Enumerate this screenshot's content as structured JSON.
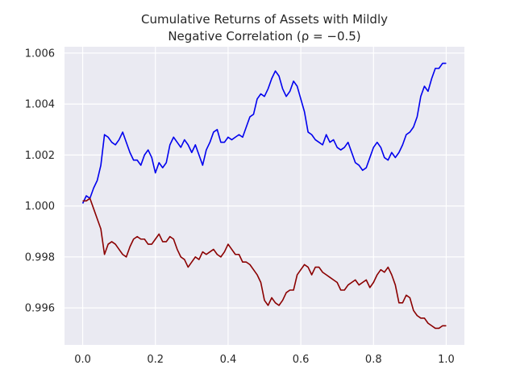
{
  "chart_data": {
    "type": "line",
    "title_line1": "Cumulative Returns of Assets with Mildly",
    "title_line2": "Negative Correlation (ρ = −0.5)",
    "xlabel": "",
    "ylabel": "",
    "xlim": [
      -0.05,
      1.05
    ],
    "ylim": [
      0.99455,
      1.00625
    ],
    "grid": true,
    "x_ticks": [
      0.0,
      0.2,
      0.4,
      0.6,
      0.8,
      1.0
    ],
    "x_tick_labels": [
      "0.0",
      "0.2",
      "0.4",
      "0.6",
      "0.8",
      "1.0"
    ],
    "y_ticks": [
      0.996,
      0.998,
      1.0,
      1.002,
      1.004,
      1.006
    ],
    "y_tick_labels": [
      "0.996",
      "0.998",
      "1.000",
      "1.002",
      "1.004",
      "1.006"
    ],
    "colors": {
      "background": "#eaeaf2",
      "grid": "#ffffff",
      "asset_1": "#0000ee",
      "asset_2": "#8b0000"
    },
    "series": [
      {
        "color": "#0000ee",
        "x": [
          0.0,
          0.01,
          0.02,
          0.03,
          0.04,
          0.05,
          0.06,
          0.07,
          0.08,
          0.09,
          0.1,
          0.11,
          0.12,
          0.13,
          0.14,
          0.15,
          0.16,
          0.17,
          0.18,
          0.19,
          0.2,
          0.21,
          0.22,
          0.23,
          0.24,
          0.25,
          0.26,
          0.27,
          0.28,
          0.29,
          0.3,
          0.31,
          0.32,
          0.33,
          0.34,
          0.35,
          0.36,
          0.37,
          0.38,
          0.39,
          0.4,
          0.41,
          0.42,
          0.43,
          0.44,
          0.45,
          0.46,
          0.47,
          0.48,
          0.49,
          0.5,
          0.51,
          0.52,
          0.53,
          0.54,
          0.55,
          0.56,
          0.57,
          0.58,
          0.59,
          0.6,
          0.61,
          0.62,
          0.63,
          0.64,
          0.65,
          0.66,
          0.67,
          0.68,
          0.69,
          0.7,
          0.71,
          0.72,
          0.73,
          0.74,
          0.75,
          0.76,
          0.77,
          0.78,
          0.79,
          0.8,
          0.81,
          0.82,
          0.83,
          0.84,
          0.85,
          0.86,
          0.87,
          0.88,
          0.89,
          0.9,
          0.91,
          0.92,
          0.93,
          0.94,
          0.95,
          0.96,
          0.97,
          0.98,
          0.99,
          1.0
        ],
        "values": [
          1.0001,
          1.0004,
          1.0003,
          1.0007,
          1.001,
          1.0016,
          1.0028,
          1.0027,
          1.0025,
          1.0024,
          1.0026,
          1.0029,
          1.0025,
          1.0021,
          1.0018,
          1.0018,
          1.0016,
          1.002,
          1.0022,
          1.0019,
          1.0013,
          1.0017,
          1.0015,
          1.0017,
          1.0024,
          1.0027,
          1.0025,
          1.0023,
          1.0026,
          1.0024,
          1.0021,
          1.0024,
          1.002,
          1.0016,
          1.0022,
          1.0025,
          1.0029,
          1.003,
          1.0025,
          1.0025,
          1.0027,
          1.0026,
          1.0027,
          1.0028,
          1.0027,
          1.0031,
          1.0035,
          1.0036,
          1.0042,
          1.0044,
          1.0043,
          1.0046,
          1.005,
          1.0053,
          1.0051,
          1.0046,
          1.0043,
          1.0045,
          1.0049,
          1.0047,
          1.0042,
          1.0037,
          1.0029,
          1.0028,
          1.0026,
          1.0025,
          1.0024,
          1.0028,
          1.0025,
          1.0026,
          1.0023,
          1.0022,
          1.0023,
          1.0025,
          1.0021,
          1.0017,
          1.0016,
          1.0014,
          1.0015,
          1.0019,
          1.0023,
          1.0025,
          1.0023,
          1.0019,
          1.0018,
          1.0021,
          1.0019,
          1.0021,
          1.0024,
          1.0028,
          1.0029,
          1.0031,
          1.0035,
          1.0043,
          1.0047,
          1.0045,
          1.005,
          1.0054,
          1.0054,
          1.0056,
          1.0056
        ]
      },
      {
        "color": "#8b0000",
        "x": [
          0.0,
          0.01,
          0.02,
          0.03,
          0.04,
          0.05,
          0.06,
          0.07,
          0.08,
          0.09,
          0.1,
          0.11,
          0.12,
          0.13,
          0.14,
          0.15,
          0.16,
          0.17,
          0.18,
          0.19,
          0.2,
          0.21,
          0.22,
          0.23,
          0.24,
          0.25,
          0.26,
          0.27,
          0.28,
          0.29,
          0.3,
          0.31,
          0.32,
          0.33,
          0.34,
          0.35,
          0.36,
          0.37,
          0.38,
          0.39,
          0.4,
          0.41,
          0.42,
          0.43,
          0.44,
          0.45,
          0.46,
          0.47,
          0.48,
          0.49,
          0.5,
          0.51,
          0.52,
          0.53,
          0.54,
          0.55,
          0.56,
          0.57,
          0.58,
          0.59,
          0.6,
          0.61,
          0.62,
          0.63,
          0.64,
          0.65,
          0.66,
          0.67,
          0.68,
          0.69,
          0.7,
          0.71,
          0.72,
          0.73,
          0.74,
          0.75,
          0.76,
          0.77,
          0.78,
          0.79,
          0.8,
          0.81,
          0.82,
          0.83,
          0.84,
          0.85,
          0.86,
          0.87,
          0.88,
          0.89,
          0.9,
          0.91,
          0.92,
          0.93,
          0.94,
          0.95,
          0.96,
          0.97,
          0.98,
          0.99,
          1.0
        ],
        "values": [
          1.0002,
          1.0002,
          1.0003,
          0.9999,
          0.9995,
          0.9991,
          0.9981,
          0.9985,
          0.9986,
          0.9985,
          0.9983,
          0.9981,
          0.998,
          0.9984,
          0.9987,
          0.9988,
          0.9987,
          0.9987,
          0.9985,
          0.9985,
          0.9987,
          0.9989,
          0.9986,
          0.9986,
          0.9988,
          0.9987,
          0.9983,
          0.998,
          0.9979,
          0.9976,
          0.9978,
          0.998,
          0.9979,
          0.9982,
          0.9981,
          0.9982,
          0.9983,
          0.9981,
          0.998,
          0.9982,
          0.9985,
          0.9983,
          0.9981,
          0.9981,
          0.9978,
          0.9978,
          0.9977,
          0.9975,
          0.9973,
          0.997,
          0.9963,
          0.9961,
          0.9964,
          0.9962,
          0.9961,
          0.9963,
          0.9966,
          0.9967,
          0.9967,
          0.9973,
          0.9975,
          0.9977,
          0.9976,
          0.9973,
          0.9976,
          0.9976,
          0.9974,
          0.9973,
          0.9972,
          0.9971,
          0.997,
          0.9967,
          0.9967,
          0.9969,
          0.997,
          0.9971,
          0.9969,
          0.997,
          0.9971,
          0.9968,
          0.997,
          0.9973,
          0.9975,
          0.9974,
          0.9976,
          0.9973,
          0.9969,
          0.9962,
          0.9962,
          0.9965,
          0.9964,
          0.9959,
          0.9957,
          0.9956,
          0.9956,
          0.9954,
          0.9953,
          0.9952,
          0.9952,
          0.9953,
          0.9953
        ]
      }
    ]
  }
}
